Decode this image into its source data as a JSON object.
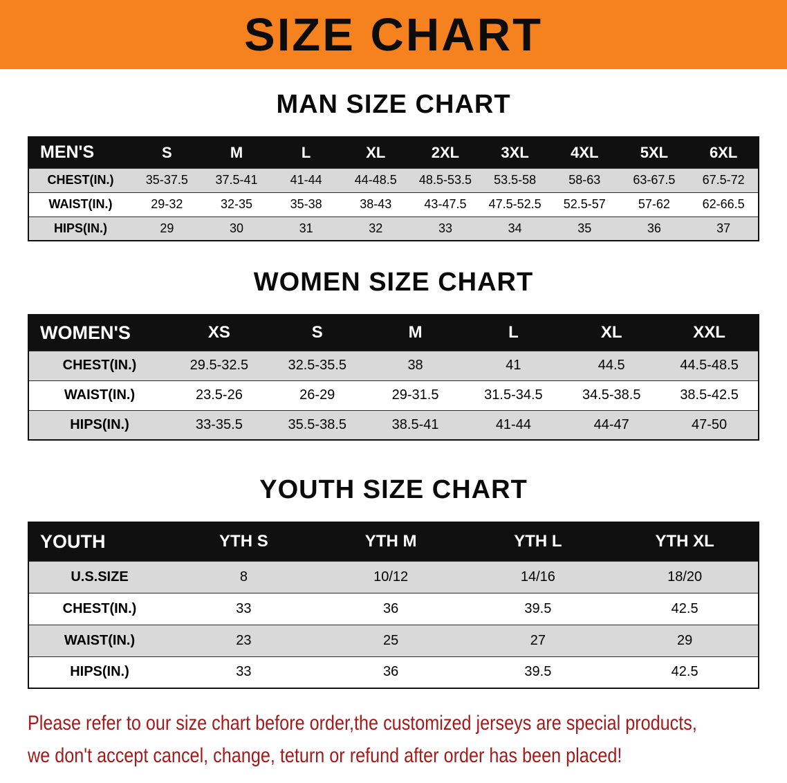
{
  "banner": {
    "title": "SIZE CHART"
  },
  "colors": {
    "banner_bg": "#f5821e",
    "table_header_bg": "#101010",
    "row_alt_gray": "#d9d9d9",
    "row_white": "#ffffff",
    "disclaimer_red": "#a21a1a"
  },
  "sections": [
    {
      "id": "men",
      "heading": "MAN SIZE CHART",
      "table": {
        "header": [
          "MEN'S",
          "S",
          "M",
          "L",
          "XL",
          "2XL",
          "3XL",
          "4XL",
          "5XL",
          "6XL"
        ],
        "rows": [
          {
            "label": "CHEST(IN.)",
            "values": [
              "35-37.5",
              "37.5-41",
              "41-44",
              "44-48.5",
              "48.5-53.5",
              "53.5-58",
              "58-63",
              "63-67.5",
              "67.5-72"
            ]
          },
          {
            "label": "WAIST(IN.)",
            "values": [
              "29-32",
              "32-35",
              "35-38",
              "38-43",
              "43-47.5",
              "47.5-52.5",
              "52.5-57",
              "57-62",
              "62-66.5"
            ]
          },
          {
            "label": "HIPS(IN.)",
            "values": [
              "29",
              "30",
              "31",
              "32",
              "33",
              "34",
              "35",
              "36",
              "37"
            ]
          }
        ]
      }
    },
    {
      "id": "women",
      "heading": "WOMEN SIZE CHART",
      "table": {
        "header": [
          "WOMEN'S",
          "XS",
          "S",
          "M",
          "L",
          "XL",
          "XXL"
        ],
        "rows": [
          {
            "label": "CHEST(IN.)",
            "values": [
              "29.5-32.5",
              "32.5-35.5",
              "38",
              "41",
              "44.5",
              "44.5-48.5"
            ]
          },
          {
            "label": "WAIST(IN.)",
            "values": [
              "23.5-26",
              "26-29",
              "29-31.5",
              "31.5-34.5",
              "34.5-38.5",
              "38.5-42.5"
            ]
          },
          {
            "label": "HIPS(IN.)",
            "values": [
              "33-35.5",
              "35.5-38.5",
              "38.5-41",
              "41-44",
              "44-47",
              "47-50"
            ]
          }
        ]
      }
    },
    {
      "id": "youth",
      "heading": "YOUTH SIZE CHART",
      "table": {
        "header": [
          "YOUTH",
          "YTH S",
          "YTH M",
          "YTH L",
          "YTH XL"
        ],
        "rows": [
          {
            "label": "U.S.SIZE",
            "values": [
              "8",
              "10/12",
              "14/16",
              "18/20"
            ]
          },
          {
            "label": "CHEST(IN.)",
            "values": [
              "33",
              "36",
              "39.5",
              "42.5"
            ]
          },
          {
            "label": "WAIST(IN.)",
            "values": [
              "23",
              "25",
              "27",
              "29"
            ]
          },
          {
            "label": "HIPS(IN.)",
            "values": [
              "33",
              "36",
              "39.5",
              "42.5"
            ]
          }
        ]
      }
    }
  ],
  "disclaimer": {
    "line1": "Please refer to our size chart before order,the customized jerseys are special products,",
    "line2": "we don't accept cancel, change, teturn or refund after order has been placed!"
  }
}
